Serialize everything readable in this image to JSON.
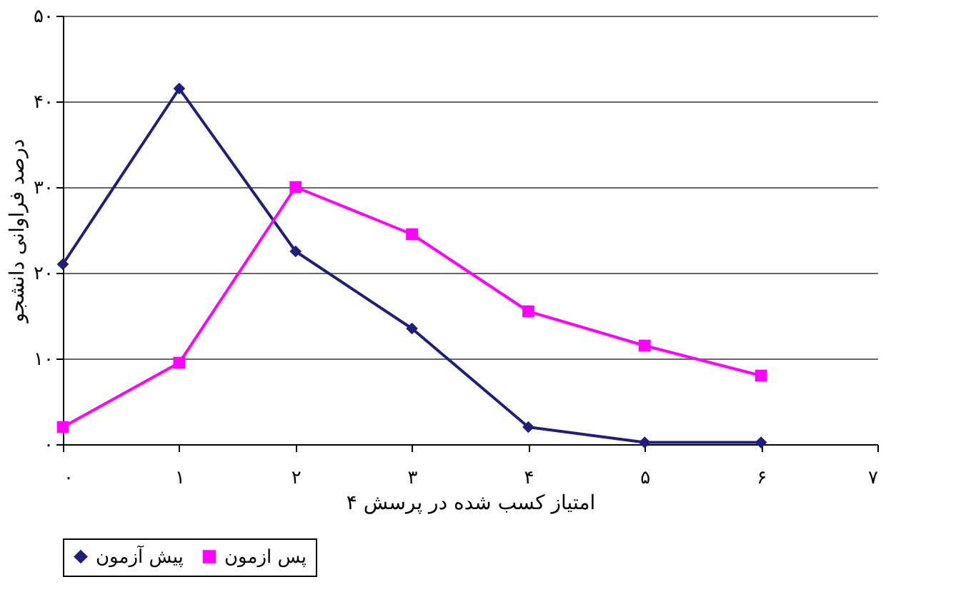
{
  "chart_data": {
    "type": "line",
    "xlabel": "امتیاز کسب شده در پرسش ۴",
    "ylabel": "درصد فراوانی دانشجو",
    "x": [
      0,
      1,
      2,
      3,
      4,
      5,
      6
    ],
    "xlim": [
      0,
      7
    ],
    "xticks": [
      {
        "value": 0,
        "label": "۰"
      },
      {
        "value": 1,
        "label": "۱"
      },
      {
        "value": 2,
        "label": "۲"
      },
      {
        "value": 3,
        "label": "۳"
      },
      {
        "value": 4,
        "label": "۴"
      },
      {
        "value": 5,
        "label": "۵"
      },
      {
        "value": 6,
        "label": "۶"
      },
      {
        "value": 7,
        "label": "۷"
      }
    ],
    "ylim": [
      0,
      50
    ],
    "yticks": [
      {
        "value": 0,
        "label": "۰"
      },
      {
        "value": 10,
        "label": "۱۰"
      },
      {
        "value": 20,
        "label": "۲۰"
      },
      {
        "value": 30,
        "label": "۳۰"
      },
      {
        "value": 40,
        "label": "۴۰"
      },
      {
        "value": 50,
        "label": "۵۰"
      }
    ],
    "grid": "y",
    "legend": "bottom",
    "line_style": "solid",
    "series": [
      {
        "name": "پیش آزمون",
        "color": "#1f1f7a",
        "marker": "diamond",
        "values": [
          21,
          41.5,
          22.5,
          13.5,
          2,
          0.2,
          0.2
        ]
      },
      {
        "name": "پس ازمون",
        "color": "#ff00ff",
        "marker": "square",
        "values": [
          2,
          9.5,
          30,
          24.5,
          15.5,
          11.5,
          8
        ]
      }
    ]
  }
}
